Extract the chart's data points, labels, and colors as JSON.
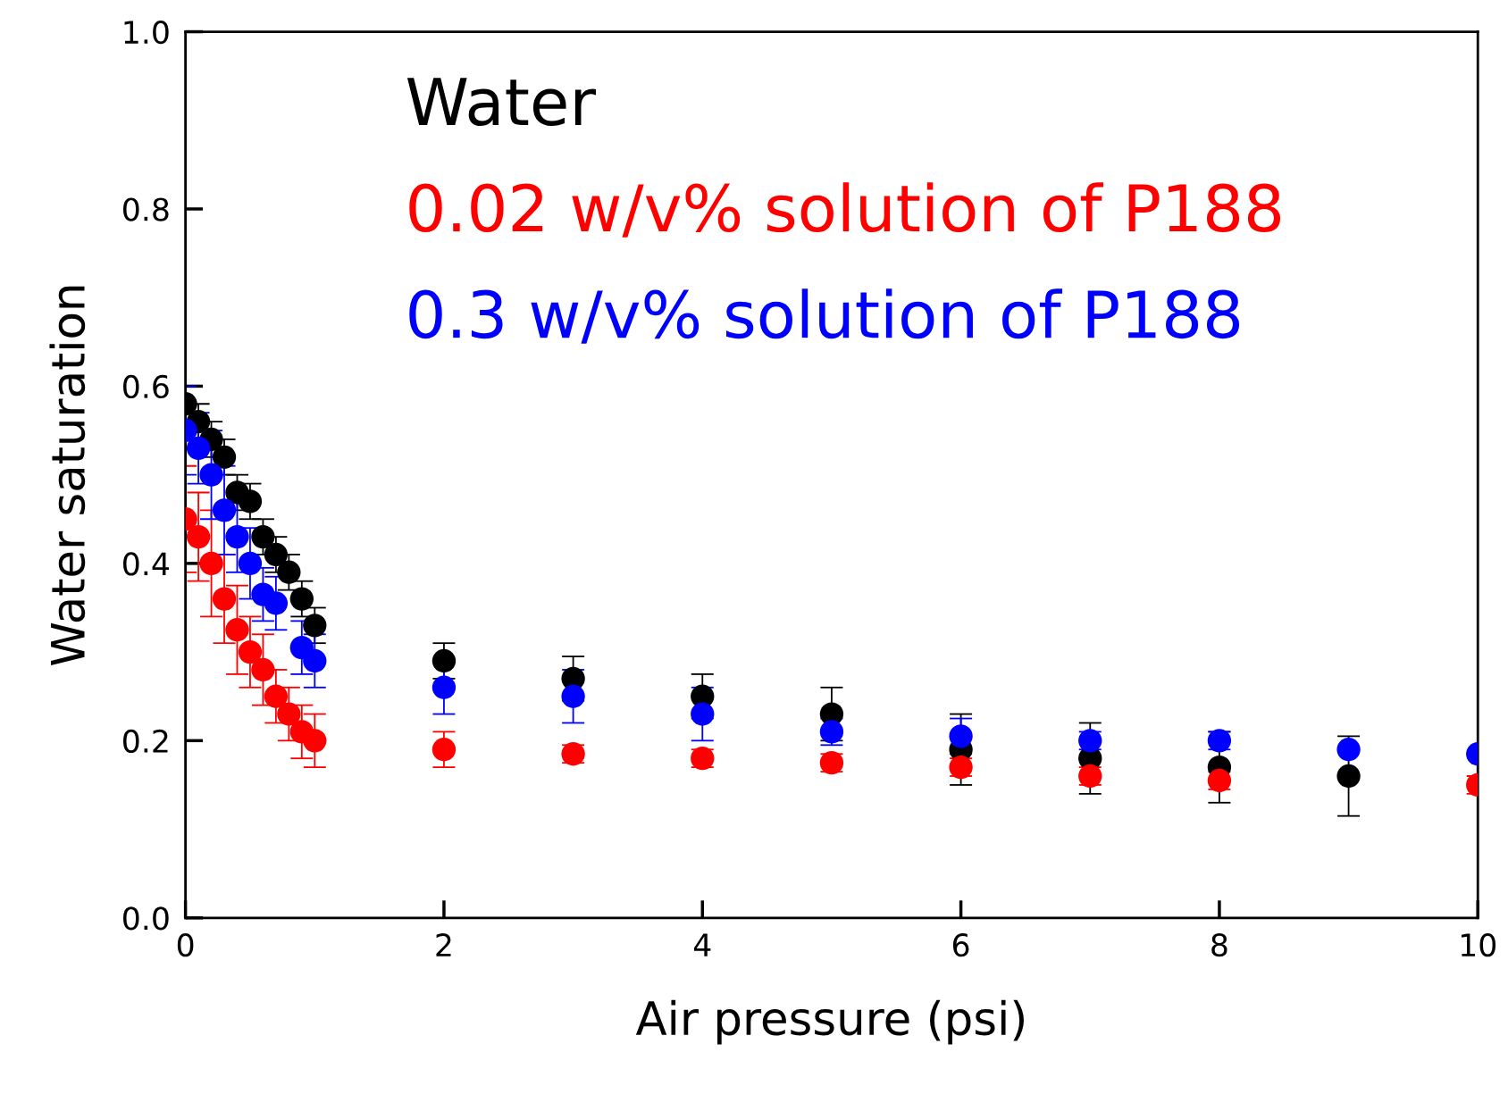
{
  "chart_data": {
    "type": "scatter",
    "xlabel": "Air pressure (psi)",
    "ylabel": "Water saturation",
    "x": [
      0,
      0.1,
      0.2,
      0.3,
      0.4,
      0.5,
      0.6,
      0.7,
      0.8,
      0.9,
      1,
      2,
      3,
      4,
      5,
      6,
      7,
      8,
      9,
      10
    ],
    "series": [
      {
        "name": "Water",
        "color": "#000000",
        "values": [
          0.58,
          0.56,
          0.54,
          0.52,
          0.48,
          0.47,
          0.43,
          0.41,
          0.39,
          0.36,
          0.33,
          0.29,
          0.27,
          0.25,
          0.23,
          0.19,
          0.18,
          0.17,
          0.16,
          null
        ],
        "errors": [
          0.02,
          0.02,
          0.02,
          0.02,
          0.02,
          0.02,
          0.02,
          0.02,
          0.02,
          0.02,
          0.02,
          0.02,
          0.025,
          0.025,
          0.03,
          0.04,
          0.04,
          0.04,
          0.045,
          null
        ]
      },
      {
        "name": "0.02 w/v% solution of P188",
        "color": "#ff0000",
        "values": [
          0.45,
          0.43,
          0.4,
          0.36,
          0.325,
          0.3,
          0.28,
          0.25,
          0.23,
          0.21,
          0.2,
          0.19,
          0.185,
          0.18,
          0.175,
          0.17,
          0.16,
          0.155,
          null,
          0.15
        ],
        "errors": [
          0.06,
          0.05,
          0.06,
          0.05,
          0.05,
          0.04,
          0.04,
          0.03,
          0.03,
          0.03,
          0.03,
          0.02,
          0.01,
          0.01,
          0.01,
          0.01,
          0.01,
          0.01,
          null,
          0.01
        ]
      },
      {
        "name": "0.3 w/v% solution of P188",
        "color": "#0000ff",
        "values": [
          0.55,
          0.53,
          0.5,
          0.46,
          0.43,
          0.4,
          0.365,
          0.355,
          null,
          0.305,
          0.29,
          0.26,
          0.25,
          0.23,
          0.21,
          0.205,
          0.2,
          0.2,
          0.19,
          0.185
        ],
        "errors": [
          0.05,
          0.04,
          0.05,
          0.05,
          0.04,
          0.04,
          0.03,
          0.03,
          null,
          0.03,
          0.03,
          0.03,
          0.03,
          0.03,
          0.015,
          0.02,
          0.01,
          0.01,
          null,
          null
        ]
      }
    ],
    "xlim": [
      0,
      10
    ],
    "xticks": [
      0,
      2,
      4,
      6,
      8,
      10
    ],
    "ylim": [
      0,
      1
    ],
    "yticks": [
      {
        "value": 0,
        "label": "0.0"
      },
      0.2,
      0.4,
      0.6,
      0.8,
      {
        "value": 1,
        "label": "1.0"
      }
    ],
    "marker": "circle",
    "grid": false,
    "legend": "top"
  }
}
